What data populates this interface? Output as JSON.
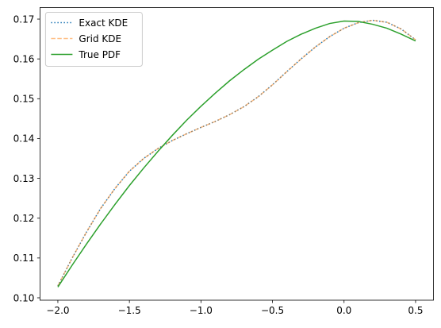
{
  "chart_data": {
    "type": "line",
    "x": [
      -2.0,
      -1.9,
      -1.8,
      -1.7,
      -1.6,
      -1.5,
      -1.4,
      -1.3,
      -1.2,
      -1.1,
      -1.0,
      -0.9,
      -0.8,
      -0.7,
      -0.6,
      -0.5,
      -0.4,
      -0.3,
      -0.2,
      -0.1,
      0.0,
      0.1,
      0.2,
      0.3,
      0.4,
      0.5
    ],
    "series": [
      {
        "name": "Exact KDE",
        "color": "#1f77b4",
        "linestyle": "dotted",
        "values": [
          0.103,
          0.11,
          0.1165,
          0.1225,
          0.1275,
          0.1318,
          0.135,
          0.1375,
          0.1395,
          0.1412,
          0.1428,
          0.1443,
          0.146,
          0.148,
          0.1505,
          0.1535,
          0.1568,
          0.16,
          0.163,
          0.1656,
          0.1677,
          0.1691,
          0.1697,
          0.1692,
          0.1675,
          0.1648
        ]
      },
      {
        "name": "Grid KDE",
        "color": "#ff7f0e",
        "linestyle": "dashed",
        "alpha": 0.5,
        "values": [
          0.103,
          0.11,
          0.1165,
          0.1225,
          0.1275,
          0.1318,
          0.135,
          0.1375,
          0.1395,
          0.1412,
          0.1428,
          0.1443,
          0.146,
          0.148,
          0.1505,
          0.1535,
          0.1568,
          0.16,
          0.163,
          0.1656,
          0.1677,
          0.1691,
          0.1697,
          0.1692,
          0.1675,
          0.1648
        ]
      },
      {
        "name": "True PDF",
        "color": "#2ca02c",
        "linestyle": "solid",
        "values": [
          0.1027,
          0.1082,
          0.1135,
          0.1186,
          0.1235,
          0.1282,
          0.1326,
          0.1368,
          0.1408,
          0.1446,
          0.1481,
          0.1514,
          0.1545,
          0.1573,
          0.1599,
          0.1622,
          0.1644,
          0.1662,
          0.1677,
          0.1689,
          0.1695,
          0.1694,
          0.1687,
          0.1677,
          0.1662,
          0.1645
        ]
      }
    ],
    "xlim": [
      -2.125,
      0.625
    ],
    "ylim": [
      0.0994,
      0.1729
    ],
    "xticks": [
      {
        "value": -2.0,
        "label": "−2.0"
      },
      {
        "value": -1.5,
        "label": "−1.5"
      },
      {
        "value": -1.0,
        "label": "−1.0"
      },
      {
        "value": -0.5,
        "label": "−0.5"
      },
      {
        "value": 0.0,
        "label": "0.0"
      },
      0.5
    ],
    "yticks": [
      {
        "value": 0.1,
        "label": "0.10"
      },
      0.11,
      0.12,
      0.13,
      0.14,
      0.15,
      0.16,
      0.17
    ],
    "grid": false,
    "legend": "upper-left"
  }
}
